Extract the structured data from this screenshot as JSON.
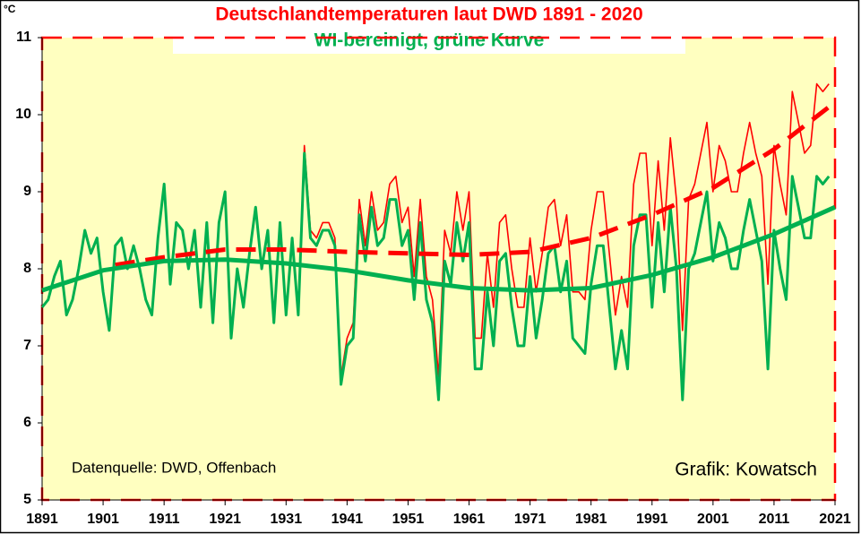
{
  "chart_data": {
    "type": "line",
    "title": "Deutschlandtemperaturen  laut DWD 1891 - 2020",
    "subtitle": "WI-bereinigt, grüne Kurve",
    "y_unit": "°C",
    "annotations": [
      "Datenquelle: DWD, Offenbach",
      "Grafik: Kowatsch"
    ],
    "x": [
      1891,
      1892,
      1893,
      1894,
      1895,
      1896,
      1897,
      1898,
      1899,
      1900,
      1901,
      1902,
      1903,
      1904,
      1905,
      1906,
      1907,
      1908,
      1909,
      1910,
      1911,
      1912,
      1913,
      1914,
      1915,
      1916,
      1917,
      1918,
      1919,
      1920,
      1921,
      1922,
      1923,
      1924,
      1925,
      1926,
      1927,
      1928,
      1929,
      1930,
      1931,
      1932,
      1933,
      1934,
      1935,
      1936,
      1937,
      1938,
      1939,
      1940,
      1941,
      1942,
      1943,
      1944,
      1945,
      1946,
      1947,
      1948,
      1949,
      1950,
      1951,
      1952,
      1953,
      1954,
      1955,
      1956,
      1957,
      1958,
      1959,
      1960,
      1961,
      1962,
      1963,
      1964,
      1965,
      1966,
      1967,
      1968,
      1969,
      1970,
      1971,
      1972,
      1973,
      1974,
      1975,
      1976,
      1977,
      1978,
      1979,
      1980,
      1981,
      1982,
      1983,
      1984,
      1985,
      1986,
      1987,
      1988,
      1989,
      1990,
      1991,
      1992,
      1993,
      1994,
      1995,
      1996,
      1997,
      1998,
      1999,
      2000,
      2001,
      2002,
      2003,
      2004,
      2005,
      2006,
      2007,
      2008,
      2009,
      2010,
      2011,
      2012,
      2013,
      2014,
      2015,
      2016,
      2017,
      2018,
      2019,
      2020
    ],
    "series": [
      {
        "color": "#ff0000",
        "width": 1.6,
        "values": [
          7.5,
          7.6,
          7.9,
          8.1,
          7.4,
          7.6,
          8.0,
          8.5,
          8.2,
          8.4,
          7.7,
          7.2,
          8.3,
          8.4,
          8.0,
          8.3,
          8.0,
          7.6,
          7.4,
          8.4,
          9.1,
          7.8,
          8.6,
          8.5,
          8.0,
          8.5,
          7.5,
          8.6,
          7.3,
          8.6,
          9.0,
          7.1,
          8.0,
          7.5,
          8.2,
          8.8,
          8.0,
          8.5,
          7.3,
          8.6,
          7.4,
          8.4,
          7.4,
          9.6,
          8.5,
          8.4,
          8.6,
          8.6,
          8.4,
          6.6,
          7.1,
          7.3,
          8.9,
          8.3,
          9.0,
          8.5,
          8.6,
          9.1,
          9.2,
          8.6,
          8.8,
          7.9,
          8.9,
          7.9,
          7.6,
          6.6,
          8.5,
          8.2,
          9.0,
          8.5,
          9.0,
          7.1,
          7.1,
          8.2,
          7.5,
          8.6,
          8.7,
          8.0,
          7.5,
          7.5,
          8.4,
          7.7,
          8.2,
          8.8,
          8.9,
          8.3,
          8.7,
          7.7,
          7.7,
          7.6,
          8.5,
          9.0,
          9.0,
          8.2,
          7.4,
          7.9,
          7.5,
          9.1,
          9.5,
          9.5,
          8.3,
          9.4,
          8.5,
          9.7,
          8.9,
          7.2,
          8.9,
          9.1,
          9.5,
          9.9,
          9.0,
          9.6,
          9.4,
          9.0,
          9.0,
          9.5,
          9.9,
          9.5,
          9.2,
          7.8,
          9.6,
          9.1,
          8.7,
          10.3,
          9.9,
          9.5,
          9.6,
          10.4,
          10.3,
          10.4
        ]
      },
      {
        "color": "#00b050",
        "width": 3,
        "values": [
          7.5,
          7.6,
          7.9,
          8.1,
          7.4,
          7.6,
          8.0,
          8.5,
          8.2,
          8.4,
          7.7,
          7.2,
          8.3,
          8.4,
          8.0,
          8.3,
          8.0,
          7.6,
          7.4,
          8.4,
          9.1,
          7.8,
          8.6,
          8.5,
          8.0,
          8.5,
          7.5,
          8.6,
          7.3,
          8.6,
          9.0,
          7.1,
          8.0,
          7.5,
          8.2,
          8.8,
          8.0,
          8.5,
          7.3,
          8.6,
          7.4,
          8.4,
          7.4,
          9.5,
          8.4,
          8.3,
          8.5,
          8.5,
          8.3,
          6.5,
          7.0,
          7.1,
          8.7,
          8.1,
          8.8,
          8.3,
          8.4,
          8.9,
          8.9,
          8.3,
          8.5,
          7.6,
          8.6,
          7.6,
          7.3,
          6.3,
          8.1,
          7.8,
          8.6,
          8.1,
          8.6,
          6.7,
          6.7,
          7.7,
          7.0,
          8.1,
          8.2,
          7.5,
          7.0,
          7.0,
          7.9,
          7.1,
          7.6,
          8.2,
          8.3,
          7.7,
          8.1,
          7.1,
          7.0,
          6.9,
          7.8,
          8.3,
          8.3,
          7.5,
          6.7,
          7.2,
          6.7,
          8.3,
          8.7,
          8.7,
          7.5,
          8.6,
          7.7,
          8.8,
          8.0,
          6.3,
          8.0,
          8.2,
          8.6,
          9.0,
          8.1,
          8.6,
          8.4,
          8.0,
          8.0,
          8.5,
          8.9,
          8.5,
          8.1,
          6.7,
          8.5,
          8.0,
          7.6,
          9.2,
          8.8,
          8.4,
          8.4,
          9.2,
          9.1,
          9.2
        ]
      },
      {
        "color": "#ff0000",
        "width": 5,
        "dashed": true,
        "x": [
          1903,
          1911,
          1921,
          1931,
          1941,
          1951,
          1961,
          1971,
          1981,
          1991,
          2001,
          2011,
          2020
        ],
        "values": [
          8.05,
          8.15,
          8.25,
          8.25,
          8.22,
          8.2,
          8.18,
          8.22,
          8.4,
          8.7,
          9.05,
          9.55,
          10.1
        ]
      },
      {
        "color": "#00b050",
        "width": 5,
        "x": [
          1891,
          1901,
          1911,
          1921,
          1931,
          1941,
          1951,
          1961,
          1971,
          1981,
          1991,
          2001,
          2011,
          2021
        ],
        "values": [
          7.72,
          7.98,
          8.1,
          8.12,
          8.07,
          7.98,
          7.85,
          7.75,
          7.72,
          7.75,
          7.92,
          8.15,
          8.45,
          8.8
        ]
      }
    ],
    "xlim": [
      1891,
      2021
    ],
    "xticks": [
      1891,
      1901,
      1911,
      1921,
      1931,
      1941,
      1951,
      1961,
      1971,
      1981,
      1991,
      2001,
      2011,
      2021
    ],
    "ylim": [
      5,
      11
    ],
    "yticks": [
      5,
      6,
      7,
      8,
      9,
      10,
      11
    ],
    "plot_background": "#ffffc0"
  }
}
